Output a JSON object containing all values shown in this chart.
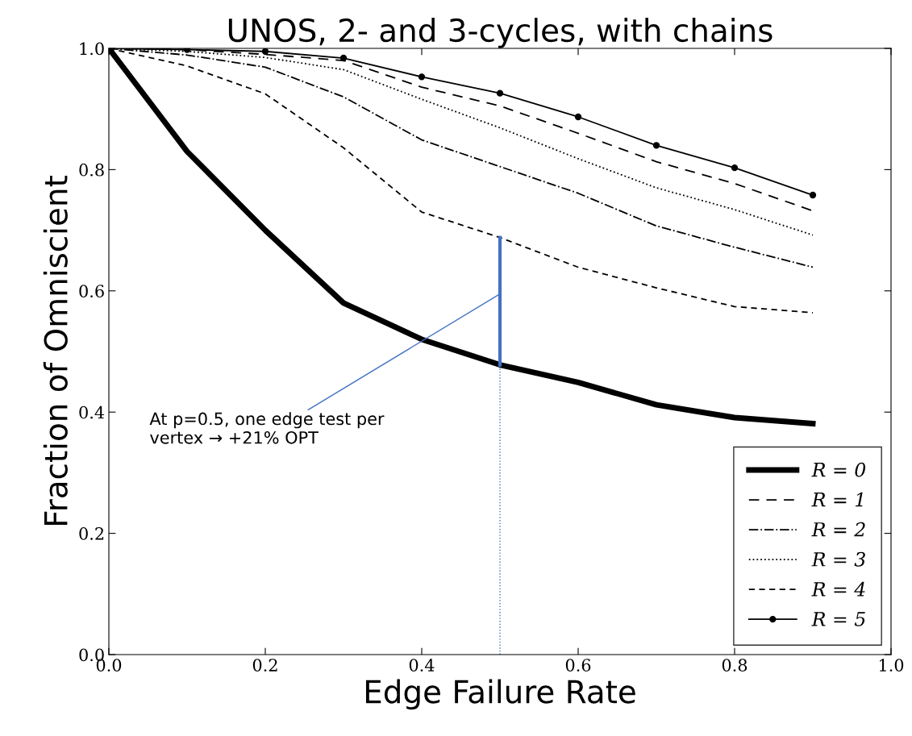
{
  "chart_data": {
    "type": "line",
    "title": "UNOS, 2- and 3-cycles, with chains",
    "xlabel": "Edge Failure Rate",
    "ylabel": "Fraction of Omniscient",
    "x": [
      0,
      0.1,
      0.2,
      0.3,
      0.4,
      0.5,
      0.6,
      0.7,
      0.8,
      0.9
    ],
    "series": [
      {
        "name": "R = 0",
        "color": "#000000",
        "line_style": "solid",
        "marker": "none",
        "values": [
          1.0,
          0.83,
          0.7,
          0.58,
          0.52,
          0.478,
          0.449,
          0.412,
          0.391,
          0.381
        ]
      },
      {
        "name": "R = 1",
        "color": "#000000",
        "line_style": "dashed",
        "marker": "none",
        "values": [
          1.0,
          0.998,
          0.99,
          0.98,
          0.936,
          0.905,
          0.86,
          0.813,
          0.777,
          0.732
        ]
      },
      {
        "name": "R = 2",
        "color": "#000000",
        "line_style": "dashdot",
        "marker": "none",
        "values": [
          1.0,
          0.989,
          0.969,
          0.92,
          0.849,
          0.805,
          0.761,
          0.707,
          0.672,
          0.639
        ]
      },
      {
        "name": "R = 3",
        "color": "#000000",
        "line_style": "dotted",
        "marker": "none",
        "values": [
          1.0,
          0.995,
          0.985,
          0.965,
          0.916,
          0.869,
          0.818,
          0.77,
          0.734,
          0.692
        ]
      },
      {
        "name": "R = 4",
        "color": "#000000",
        "line_style": "dashed",
        "marker": "none",
        "values": [
          1.0,
          0.971,
          0.925,
          0.836,
          0.73,
          0.688,
          0.639,
          0.605,
          0.574,
          0.564
        ]
      },
      {
        "name": "R = 5",
        "color": "#000000",
        "line_style": "solid",
        "marker": "circle",
        "values": [
          1.0,
          0.998,
          0.995,
          0.984,
          0.953,
          0.926,
          0.887,
          0.84,
          0.803,
          0.758
        ]
      },
      {
        "color": "#4472c4",
        "line_style": "solid",
        "marker": "none",
        "x": [
          0.5,
          0.5
        ],
        "values": [
          0.478,
          0.688
        ]
      }
    ],
    "ref_lines": [
      {
        "axis": "x",
        "value": 0.5,
        "color": "#4472c4",
        "line_style": "dotted"
      }
    ],
    "annotations": [
      {
        "text": "At p=0.5, one edge test per\nvertex → +21% OPT",
        "x": 0.5,
        "y": 0.595
      }
    ],
    "xlim": [
      0,
      1
    ],
    "ylim": [
      0,
      1
    ],
    "xticks": [
      {
        "value": 0,
        "label": "0.0"
      },
      0.2,
      0.4,
      0.6,
      0.8,
      {
        "value": 1,
        "label": "1.0"
      }
    ],
    "yticks": [
      {
        "value": 0,
        "label": "0.0"
      },
      0.2,
      0.4,
      0.6,
      0.8,
      {
        "value": 1,
        "label": "1.0"
      }
    ],
    "grid": false,
    "legend": "bottom right"
  }
}
